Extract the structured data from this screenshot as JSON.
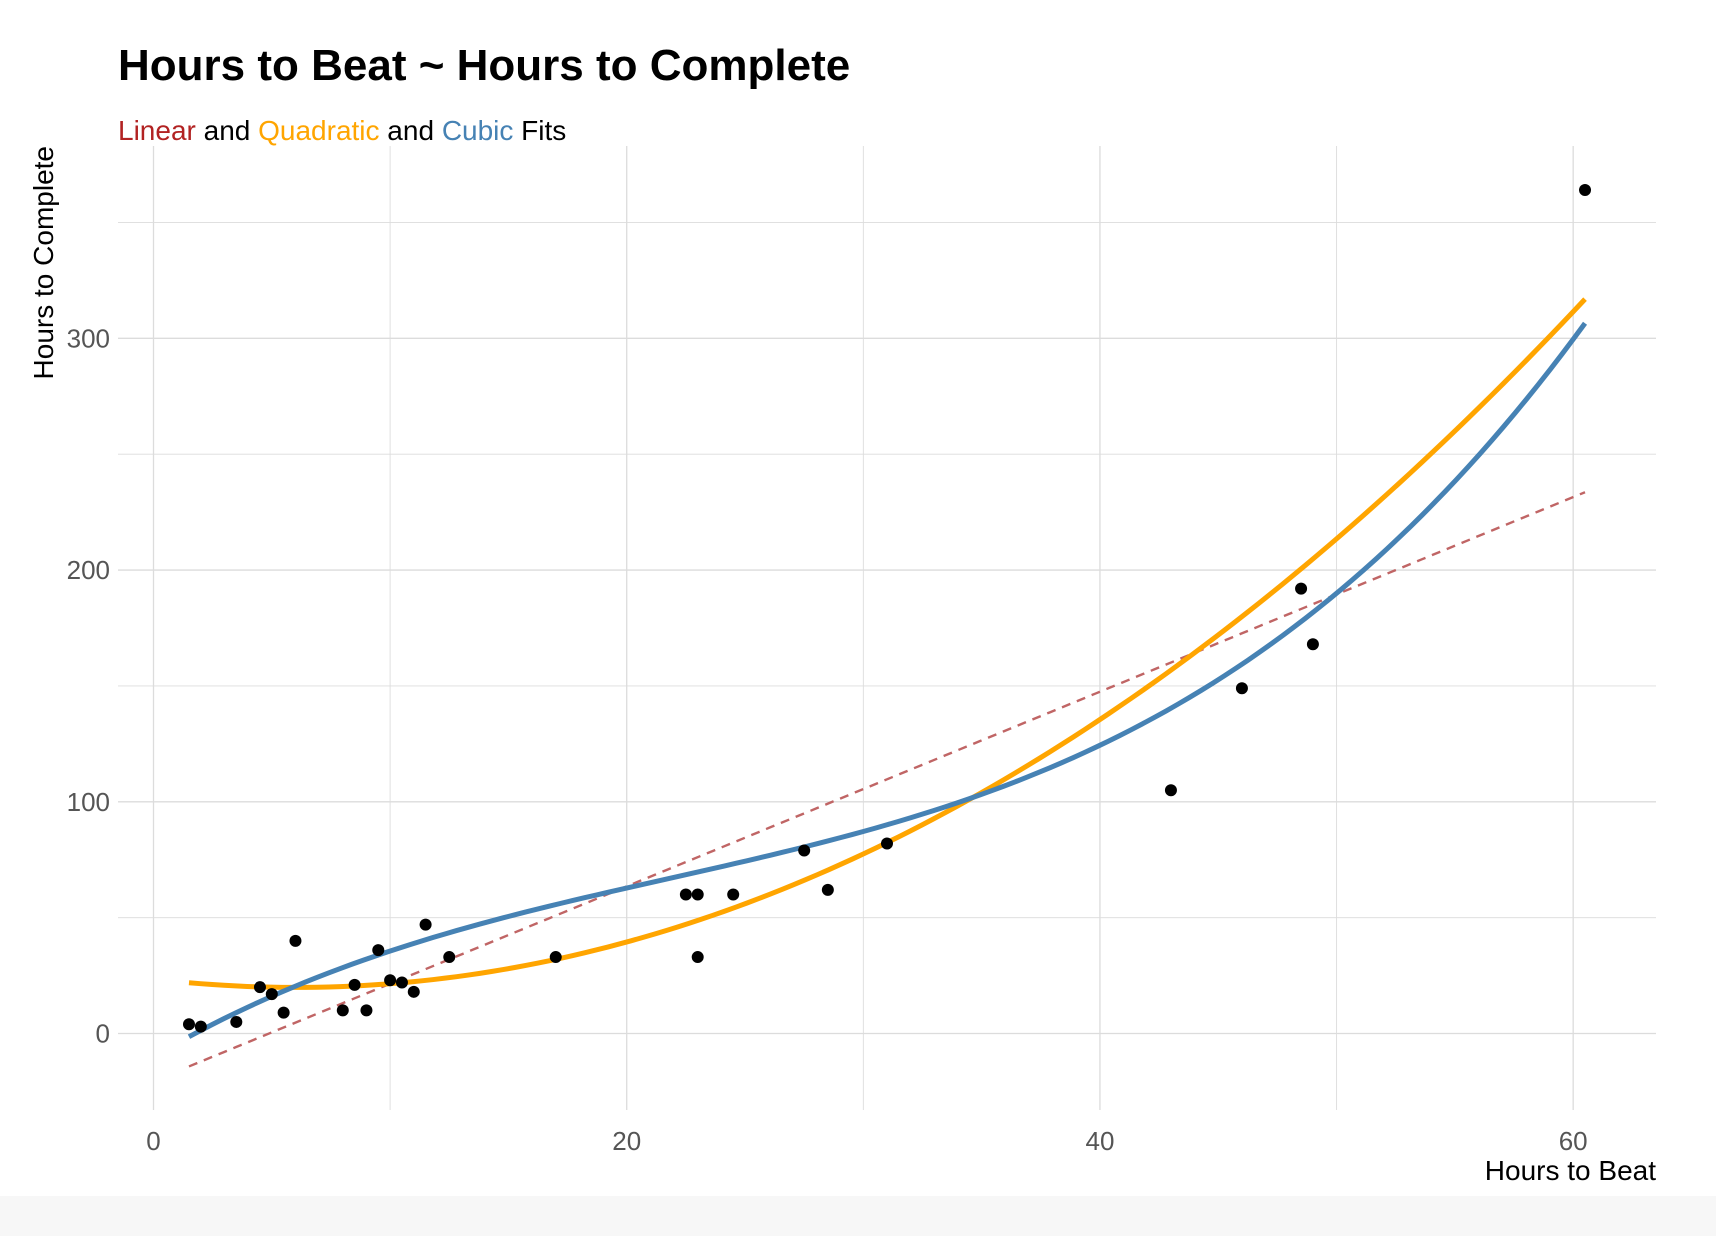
{
  "chart_data": {
    "type": "scatter",
    "title": "Hours to Beat ~ Hours to Complete",
    "subtitle": [
      {
        "text": "Linear",
        "color": "#b22222"
      },
      {
        "text": " and ",
        "color": "#000000"
      },
      {
        "text": "Quadratic",
        "color": "#ffa500"
      },
      {
        "text": " and ",
        "color": "#000000"
      },
      {
        "text": "Cubic",
        "color": "#4682b4"
      },
      {
        "text": " Fits",
        "color": "#000000"
      }
    ],
    "xlabel": "Hours to Beat",
    "ylabel": "Hours to Complete",
    "xlim": [
      -1.5,
      63.5
    ],
    "ylim": [
      -33,
      383
    ],
    "xticks": [
      0,
      20,
      40,
      60
    ],
    "yticks": [
      0,
      100,
      200,
      300
    ],
    "grid": true,
    "points": [
      {
        "x": 1.5,
        "y": 4
      },
      {
        "x": 2,
        "y": 3
      },
      {
        "x": 3.5,
        "y": 5
      },
      {
        "x": 4.5,
        "y": 20
      },
      {
        "x": 5,
        "y": 17
      },
      {
        "x": 5.5,
        "y": 9
      },
      {
        "x": 6,
        "y": 40
      },
      {
        "x": 8,
        "y": 10
      },
      {
        "x": 8.5,
        "y": 21
      },
      {
        "x": 9,
        "y": 10
      },
      {
        "x": 9.5,
        "y": 36
      },
      {
        "x": 10,
        "y": 23
      },
      {
        "x": 10.5,
        "y": 22
      },
      {
        "x": 11,
        "y": 18
      },
      {
        "x": 11.5,
        "y": 47
      },
      {
        "x": 12.5,
        "y": 33
      },
      {
        "x": 17,
        "y": 33
      },
      {
        "x": 22.5,
        "y": 60
      },
      {
        "x": 23,
        "y": 60
      },
      {
        "x": 23,
        "y": 33
      },
      {
        "x": 24.5,
        "y": 60
      },
      {
        "x": 27.5,
        "y": 79
      },
      {
        "x": 28.5,
        "y": 62
      },
      {
        "x": 31,
        "y": 82
      },
      {
        "x": 43,
        "y": 105
      },
      {
        "x": 46,
        "y": 149
      },
      {
        "x": 48.5,
        "y": 192
      },
      {
        "x": 49,
        "y": 168
      },
      {
        "x": 60.5,
        "y": 364
      }
    ],
    "fits": [
      {
        "name": "Linear",
        "color": "#c06565",
        "dashed": true,
        "xrange": [
          1.5,
          60.5
        ],
        "coef": [
          -20.5,
          4.2
        ]
      },
      {
        "name": "Quadratic",
        "color": "#ffa500",
        "dashed": false,
        "xrange": [
          1.5,
          60.5
        ],
        "coef": [
          23.5,
          -1.2,
          0.1
        ]
      },
      {
        "name": "Cubic",
        "color": "#4682b4",
        "dashed": false,
        "xrange": [
          1.5,
          60.5
        ],
        "coef": [
          -10,
          6,
          -0.17,
          0.0026
        ]
      }
    ]
  }
}
